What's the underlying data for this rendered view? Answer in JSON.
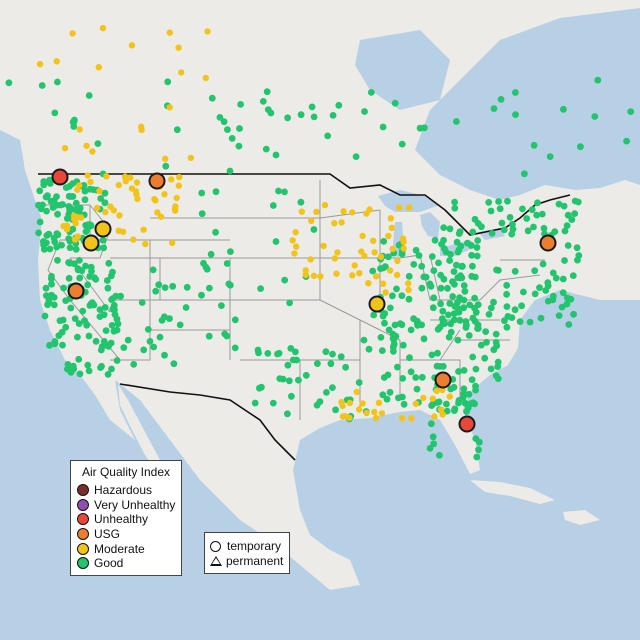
{
  "legend": {
    "title": "Air Quality Index",
    "categories": [
      {
        "label": "Hazardous",
        "color": "#7e2b2b"
      },
      {
        "label": "Very Unhealthy",
        "color": "#8f4fb3"
      },
      {
        "label": "Unhealthy",
        "color": "#e8473a"
      },
      {
        "label": "USG",
        "color": "#ee7e2f"
      },
      {
        "label": "Moderate",
        "color": "#f2c318"
      },
      {
        "label": "Good",
        "color": "#22c46e"
      }
    ]
  },
  "type_legend": {
    "temporary": "temporary",
    "permanent": "permanent"
  },
  "colors": {
    "water": "#b7d0e6",
    "land": "#ecebe8",
    "state_border": "#9a9a9a",
    "national_border": "#111111"
  },
  "chart_data": {
    "type": "map-scatter",
    "highlighted_sites": [
      {
        "category": "Unhealthy",
        "location": "northern Washington"
      },
      {
        "category": "Unhealthy",
        "location": "northeast Florida"
      },
      {
        "category": "USG",
        "location": "northwest Montana"
      },
      {
        "category": "USG",
        "location": "northern California"
      },
      {
        "category": "USG",
        "location": "Georgia"
      },
      {
        "category": "USG",
        "location": "New York"
      },
      {
        "category": "Moderate",
        "location": "western Idaho"
      },
      {
        "category": "Moderate",
        "location": "western Idaho"
      },
      {
        "category": "Moderate",
        "location": "Missouri / Illinois"
      }
    ],
    "good_clusters": [
      {
        "location": "Pacific Northwest",
        "count": 90
      },
      {
        "location": "California",
        "count": 90
      },
      {
        "location": "Intermountain West",
        "count": 45
      },
      {
        "location": "Great Plains",
        "count": 20
      },
      {
        "location": "Texas",
        "count": 40
      },
      {
        "location": "Ohio Valley / Midwest",
        "count": 80
      },
      {
        "location": "Mid-Atlantic / Northeast",
        "count": 120
      },
      {
        "location": "Southeast",
        "count": 80
      },
      {
        "location": "Florida",
        "count": 25
      },
      {
        "location": "Canada (southern)",
        "count": 60
      }
    ],
    "moderate_clusters": [
      {
        "location": "Northern Rockies",
        "count": 50
      },
      {
        "location": "Midwest",
        "count": 50
      },
      {
        "location": "Gulf Coast",
        "count": 25
      },
      {
        "location": "Canada (prairies)",
        "count": 20
      }
    ]
  }
}
